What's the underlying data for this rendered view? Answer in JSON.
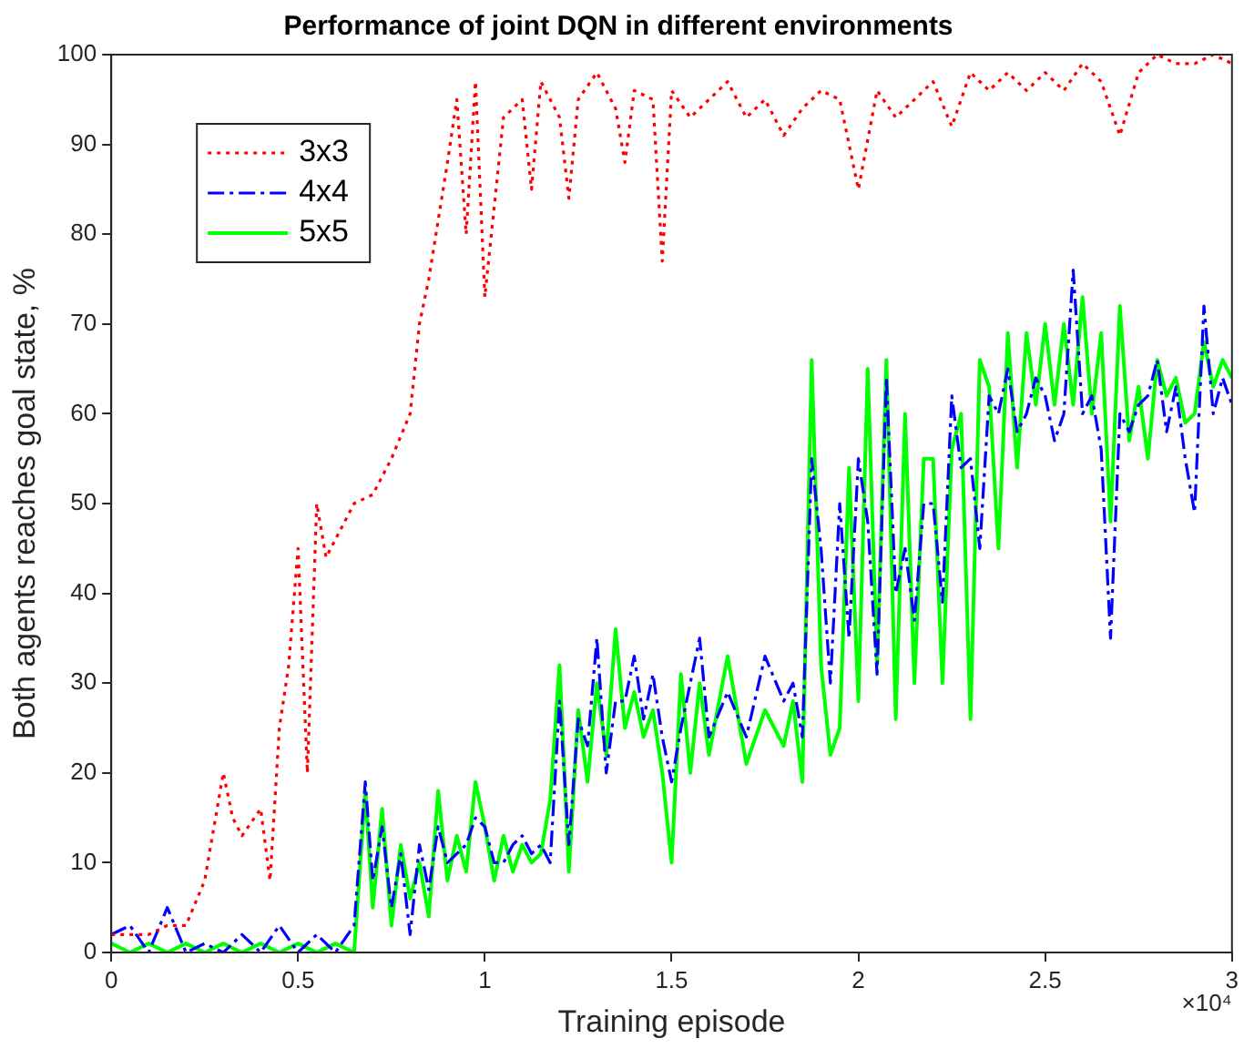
{
  "chart_data": {
    "type": "line",
    "title": "Performance of joint DQN in different environments",
    "xlabel": "Training episode",
    "ylabel": "Both agents reaches goal state, %",
    "xlim": [
      0,
      3
    ],
    "xticks": [
      0,
      0.5,
      1,
      1.5,
      2,
      2.5,
      3
    ],
    "ylim": [
      0,
      100
    ],
    "yticks": [
      0,
      10,
      20,
      30,
      40,
      50,
      60,
      70,
      80,
      90,
      100
    ],
    "grid": false,
    "legend": "top left",
    "marker": "none",
    "annotations": [
      "×10⁴"
    ],
    "series": [
      {
        "name": "3x3",
        "color": "#ff0000",
        "line_style": "dotted",
        "x": [
          0,
          0.05,
          0.1,
          0.15,
          0.2,
          0.25,
          0.3,
          0.325,
          0.35,
          0.4,
          0.425,
          0.45,
          0.475,
          0.5,
          0.525,
          0.55,
          0.575,
          0.6,
          0.65,
          0.7,
          0.75,
          0.8,
          0.825,
          0.85,
          0.9,
          0.925,
          0.95,
          0.975,
          1,
          1.05,
          1.1,
          1.125,
          1.15,
          1.2,
          1.225,
          1.25,
          1.3,
          1.35,
          1.375,
          1.4,
          1.45,
          1.475,
          1.5,
          1.55,
          1.6,
          1.65,
          1.7,
          1.75,
          1.8,
          1.85,
          1.9,
          1.95,
          2,
          2.05,
          2.1,
          2.15,
          2.2,
          2.25,
          2.3,
          2.35,
          2.4,
          2.45,
          2.5,
          2.55,
          2.6,
          2.65,
          2.7,
          2.75,
          2.8,
          2.85,
          2.9,
          2.95,
          3
        ],
        "values": [
          2,
          2,
          2,
          3,
          3,
          8,
          20,
          15,
          13,
          16,
          8,
          25,
          32,
          45,
          20,
          50,
          44,
          46,
          50,
          51,
          55,
          60,
          70,
          75,
          88,
          95,
          80,
          97,
          73,
          93,
          95,
          85,
          97,
          93,
          84,
          95,
          98,
          94,
          88,
          96,
          95,
          77,
          96,
          93,
          95,
          97,
          93,
          95,
          91,
          94,
          96,
          95,
          85,
          96,
          93,
          95,
          97,
          92,
          98,
          96,
          98,
          96,
          98,
          96,
          99,
          97,
          91,
          98,
          100,
          99,
          99,
          100,
          99
        ]
      },
      {
        "name": "4x4",
        "color": "#0000ff",
        "line_style": "dashdot",
        "x": [
          0,
          0.05,
          0.1,
          0.15,
          0.2,
          0.25,
          0.3,
          0.35,
          0.4,
          0.45,
          0.5,
          0.55,
          0.6,
          0.65,
          0.68,
          0.7,
          0.725,
          0.75,
          0.775,
          0.8,
          0.825,
          0.85,
          0.875,
          0.9,
          0.925,
          0.95,
          0.975,
          1,
          1.025,
          1.05,
          1.075,
          1.1,
          1.125,
          1.15,
          1.175,
          1.2,
          1.225,
          1.25,
          1.275,
          1.3,
          1.325,
          1.35,
          1.375,
          1.4,
          1.425,
          1.45,
          1.475,
          1.5,
          1.525,
          1.55,
          1.575,
          1.6,
          1.65,
          1.7,
          1.75,
          1.8,
          1.825,
          1.85,
          1.875,
          1.9,
          1.925,
          1.95,
          1.975,
          2,
          2.025,
          2.05,
          2.075,
          2.1,
          2.125,
          2.15,
          2.175,
          2.2,
          2.225,
          2.25,
          2.275,
          2.3,
          2.325,
          2.35,
          2.375,
          2.4,
          2.425,
          2.45,
          2.475,
          2.5,
          2.525,
          2.55,
          2.575,
          2.6,
          2.625,
          2.65,
          2.675,
          2.7,
          2.725,
          2.75,
          2.775,
          2.8,
          2.825,
          2.85,
          2.875,
          2.9,
          2.925,
          2.95,
          2.975,
          3
        ],
        "values": [
          2,
          3,
          0,
          5,
          0,
          1,
          0,
          2,
          0,
          3,
          0,
          2,
          0,
          3,
          19,
          8,
          14,
          5,
          11,
          2,
          12,
          7,
          14,
          10,
          11,
          12,
          15,
          14,
          10,
          10,
          12,
          13,
          11,
          12,
          10,
          28,
          12,
          26,
          23,
          35,
          20,
          28,
          28,
          33,
          26,
          31,
          24,
          19,
          25,
          30,
          35,
          24,
          29,
          24,
          33,
          28,
          30,
          24,
          55,
          45,
          30,
          50,
          35,
          55,
          48,
          31,
          64,
          40,
          45,
          37,
          50,
          50,
          39,
          62,
          54,
          55,
          45,
          62,
          60,
          65,
          58,
          60,
          64,
          62,
          57,
          60,
          76,
          60,
          62,
          56,
          35,
          60,
          58,
          61,
          62,
          66,
          58,
          63,
          55,
          49,
          72,
          60,
          64,
          61
        ]
      },
      {
        "name": "5x5",
        "color": "#00ff00",
        "line_style": "solid",
        "x": [
          0,
          0.05,
          0.1,
          0.15,
          0.2,
          0.25,
          0.3,
          0.35,
          0.4,
          0.45,
          0.5,
          0.55,
          0.6,
          0.65,
          0.68,
          0.7,
          0.725,
          0.75,
          0.775,
          0.8,
          0.825,
          0.85,
          0.875,
          0.9,
          0.925,
          0.95,
          0.975,
          1,
          1.025,
          1.05,
          1.075,
          1.1,
          1.125,
          1.15,
          1.175,
          1.2,
          1.225,
          1.25,
          1.275,
          1.3,
          1.325,
          1.35,
          1.375,
          1.4,
          1.425,
          1.45,
          1.475,
          1.5,
          1.525,
          1.55,
          1.575,
          1.6,
          1.65,
          1.7,
          1.75,
          1.8,
          1.825,
          1.85,
          1.875,
          1.9,
          1.925,
          1.95,
          1.975,
          2,
          2.025,
          2.05,
          2.075,
          2.1,
          2.125,
          2.15,
          2.175,
          2.2,
          2.225,
          2.25,
          2.275,
          2.3,
          2.325,
          2.35,
          2.375,
          2.4,
          2.425,
          2.45,
          2.475,
          2.5,
          2.525,
          2.55,
          2.575,
          2.6,
          2.625,
          2.65,
          2.675,
          2.7,
          2.725,
          2.75,
          2.775,
          2.8,
          2.825,
          2.85,
          2.875,
          2.9,
          2.925,
          2.95,
          2.975,
          3
        ],
        "values": [
          1,
          0,
          1,
          0,
          1,
          0,
          1,
          0,
          1,
          0,
          1,
          0,
          1,
          0,
          18,
          5,
          16,
          3,
          12,
          6,
          10,
          4,
          18,
          8,
          13,
          9,
          19,
          14,
          8,
          13,
          9,
          12,
          10,
          11,
          17,
          32,
          9,
          27,
          19,
          30,
          22,
          36,
          25,
          29,
          24,
          27,
          20,
          10,
          31,
          20,
          30,
          22,
          33,
          21,
          27,
          23,
          28,
          19,
          66,
          32,
          22,
          25,
          54,
          28,
          65,
          32,
          66,
          26,
          60,
          30,
          55,
          55,
          30,
          56,
          60,
          26,
          66,
          63,
          45,
          69,
          54,
          69,
          61,
          70,
          61,
          70,
          61,
          73,
          60,
          69,
          48,
          72,
          57,
          63,
          55,
          66,
          62,
          64,
          59,
          60,
          68,
          63,
          66,
          64
        ]
      }
    ]
  }
}
